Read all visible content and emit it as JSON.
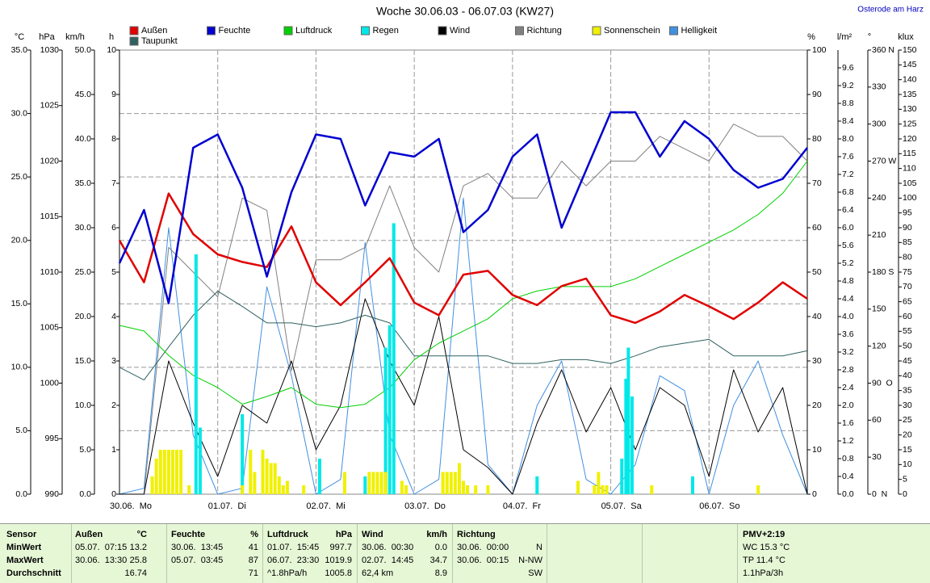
{
  "chart_data": {
    "type": "weather-week",
    "title": "Woche 30.06.03 - 06.07.03 (KW27)",
    "station": "Osterode am Harz",
    "xlim": [
      0,
      168
    ],
    "xticks": [
      {
        "value": 0,
        "label": "30.06.  Mo"
      },
      {
        "value": 24,
        "label": "01.07.  Di"
      },
      {
        "value": 48,
        "label": "02.07.  Mi"
      },
      {
        "value": 72,
        "label": "03.07.  Do"
      },
      {
        "value": 96,
        "label": "04.07.  Fr"
      },
      {
        "value": 120,
        "label": "05.07.  Sa"
      },
      {
        "value": 144,
        "label": "06.07.  So"
      }
    ],
    "grid": true,
    "axes": [
      {
        "unit": "°C",
        "lim": [
          0,
          35
        ],
        "ticks": [
          {
            "value": 0,
            "label": "0.0"
          },
          {
            "value": 5,
            "label": "5.0"
          },
          {
            "value": 10,
            "label": "10.0"
          },
          {
            "value": 15,
            "label": "15.0"
          },
          {
            "value": 20,
            "label": "20.0"
          },
          {
            "value": 25,
            "label": "25.0"
          },
          {
            "value": 30,
            "label": "30.0"
          },
          {
            "value": 35,
            "label": "35.0"
          }
        ]
      },
      {
        "unit": "hPa",
        "lim": [
          990,
          1030
        ],
        "ticks": [
          990,
          995,
          1000,
          1005,
          1010,
          1015,
          1020,
          1025,
          1030
        ]
      },
      {
        "unit": "km/h",
        "lim": [
          0,
          50
        ],
        "ticks": [
          {
            "value": 0,
            "label": "0.0"
          },
          {
            "value": 5,
            "label": "5.0"
          },
          {
            "value": 10,
            "label": "10.0"
          },
          {
            "value": 15,
            "label": "15.0"
          },
          {
            "value": 20,
            "label": "20.0"
          },
          {
            "value": 25,
            "label": "25.0"
          },
          {
            "value": 30,
            "label": "30.0"
          },
          {
            "value": 35,
            "label": "35.0"
          },
          {
            "value": 40,
            "label": "40.0"
          },
          {
            "value": 45,
            "label": "45.0"
          },
          {
            "value": 50,
            "label": "50.0"
          }
        ]
      },
      {
        "unit": "h",
        "lim": [
          0,
          10
        ],
        "ticks": [
          0,
          1,
          2,
          3,
          4,
          5,
          6,
          7,
          8,
          9,
          10
        ]
      },
      {
        "unit": "%",
        "lim": [
          0,
          100
        ],
        "ticks": [
          0,
          10,
          20,
          30,
          40,
          50,
          60,
          70,
          80,
          90,
          100
        ]
      },
      {
        "unit": "l/m²",
        "lim": [
          0,
          10
        ],
        "ticks": [
          {
            "value": 0,
            "label": "0.0"
          },
          {
            "value": 0.4,
            "label": "0.4"
          },
          {
            "value": 0.8,
            "label": "0.8"
          },
          {
            "value": 1.2,
            "label": "1.2"
          },
          {
            "value": 1.6,
            "label": "1.6"
          },
          {
            "value": 2,
            "label": "2.0"
          },
          {
            "value": 2.4,
            "label": "2.4"
          },
          {
            "value": 2.8,
            "label": "2.8"
          },
          {
            "value": 3.2,
            "label": "3.2"
          },
          {
            "value": 3.6,
            "label": "3.6"
          },
          {
            "value": 4,
            "label": "4.0"
          },
          {
            "value": 4.4,
            "label": "4.4"
          },
          {
            "value": 4.8,
            "label": "4.8"
          },
          {
            "value": 5.2,
            "label": "5.2"
          },
          {
            "value": 5.6,
            "label": "5.6"
          },
          {
            "value": 6,
            "label": "6.0"
          },
          {
            "value": 6.4,
            "label": "6.4"
          },
          {
            "value": 6.8,
            "label": "6.8"
          },
          {
            "value": 7.2,
            "label": "7.2"
          },
          {
            "value": 7.6,
            "label": "7.6"
          },
          {
            "value": 8,
            "label": "8.0"
          },
          {
            "value": 8.4,
            "label": "8.4"
          },
          {
            "value": 8.8,
            "label": "8.8"
          },
          {
            "value": 9.2,
            "label": "9.2"
          },
          {
            "value": 9.6,
            "label": "9.6"
          }
        ]
      },
      {
        "unit": "°",
        "lim": [
          0,
          360
        ],
        "ticks": [
          {
            "value": 0,
            "label": "0  N"
          },
          30,
          60,
          {
            "value": 90,
            "label": "90  O"
          },
          120,
          150,
          {
            "value": 180,
            "label": "180 S"
          },
          210,
          240,
          {
            "value": 270,
            "label": "270 W"
          },
          300,
          330,
          {
            "value": 360,
            "label": "360 N"
          }
        ]
      },
      {
        "unit": "klux",
        "lim": [
          0,
          150
        ],
        "ticks": [
          0,
          5,
          10,
          15,
          20,
          25,
          30,
          35,
          40,
          45,
          50,
          55,
          60,
          65,
          70,
          75,
          80,
          85,
          90,
          95,
          100,
          105,
          110,
          115,
          120,
          125,
          130,
          135,
          140,
          145,
          150
        ]
      }
    ],
    "x": [
      0,
      6,
      12,
      18,
      24,
      30,
      36,
      42,
      48,
      54,
      60,
      66,
      72,
      78,
      84,
      90,
      96,
      102,
      108,
      114,
      120,
      126,
      132,
      138,
      144,
      150,
      156,
      162,
      168
    ],
    "series": [
      {
        "name": "Helligkeit",
        "color": "#4090e0",
        "axis": 7,
        "kind": "line",
        "width": 1,
        "values": [
          0,
          2,
          90,
          20,
          0,
          2,
          70,
          40,
          0,
          5,
          85,
          20,
          0,
          5,
          100,
          10,
          0,
          30,
          45,
          5,
          0,
          10,
          40,
          35,
          0,
          30,
          45,
          20,
          0
        ]
      },
      {
        "name": "Richtung",
        "color": "#808080",
        "axis": 6,
        "kind": "line",
        "width": 1,
        "values": [
          0,
          0,
          200,
          180,
          160,
          240,
          230,
          100,
          190,
          190,
          200,
          250,
          200,
          180,
          250,
          260,
          240,
          240,
          270,
          250,
          270,
          270,
          290,
          280,
          270,
          300,
          290,
          290,
          270
        ]
      },
      {
        "name": "Wind",
        "color": "#000000",
        "axis": 2,
        "kind": "line",
        "width": 1,
        "values": [
          0,
          0,
          15,
          8,
          2,
          10,
          8,
          15,
          5,
          10,
          22,
          15,
          10,
          20,
          5,
          3,
          0,
          8,
          14,
          7,
          12,
          5,
          12,
          10,
          2,
          14,
          7,
          12,
          0
        ]
      },
      {
        "name": "Taupunkt",
        "color": "#306060",
        "axis": 0,
        "kind": "line",
        "width": 1,
        "values": [
          10.0,
          9.0,
          11.6,
          14.1,
          16.0,
          14.8,
          13.5,
          13.5,
          13.2,
          13.5,
          14.1,
          13.5,
          10.9,
          10.9,
          10.9,
          10.9,
          10.3,
          10.3,
          10.6,
          10.6,
          10.3,
          10.9,
          11.6,
          11.9,
          12.2,
          10.9,
          10.9,
          10.9,
          11.3
        ]
      },
      {
        "name": "Luftdruck",
        "color": "#00d000",
        "axis": 1,
        "kind": "line",
        "width": 1,
        "values": [
          1005.2,
          1004.7,
          1002.5,
          1000.7,
          999.6,
          998.1,
          998.8,
          999.6,
          998.1,
          997.8,
          998.1,
          999.6,
          1002.1,
          1003.6,
          1004.7,
          1005.8,
          1007.6,
          1008.3,
          1008.7,
          1008.7,
          1008.7,
          1009.4,
          1010.5,
          1011.6,
          1012.7,
          1013.8,
          1015.2,
          1017.1,
          1020.0
        ]
      },
      {
        "name": "Regen",
        "color": "#00e8e8",
        "axis": 5,
        "kind": "bar",
        "x": [
          18.7,
          19.7,
          30,
          48.9,
          60,
          65,
          66,
          67,
          102,
          122.7,
          123.7,
          124.3,
          125.2,
          140
        ],
        "values": [
          5.4,
          1.5,
          1.8,
          0.8,
          0.4,
          3.3,
          3.8,
          6.1,
          0.4,
          0.8,
          2.6,
          3.3,
          2.2,
          0.4
        ]
      },
      {
        "name": "Sonnenschein",
        "color": "#f0f000",
        "axis": 3,
        "kind": "bar",
        "x": [
          8,
          9,
          10,
          11,
          12,
          13,
          14,
          15,
          17,
          30,
          32,
          33,
          35,
          36,
          37,
          38,
          39,
          40,
          41,
          45,
          55,
          61,
          62,
          63,
          64,
          65,
          69,
          70,
          79,
          80,
          81,
          82,
          83,
          84,
          85,
          87,
          90,
          112,
          116,
          117,
          118,
          119,
          130,
          156
        ],
        "values": [
          0.4,
          0.8,
          1,
          1,
          1,
          1,
          1,
          1,
          0.2,
          0.2,
          1,
          0.5,
          1,
          0.8,
          0.7,
          0.7,
          0.4,
          0.2,
          0.3,
          0.2,
          0.5,
          0.5,
          0.5,
          0.5,
          0.5,
          0.5,
          0.3,
          0.2,
          0.5,
          0.5,
          0.5,
          0.5,
          0.7,
          0.3,
          0.2,
          0.2,
          0.2,
          0.3,
          0.2,
          0.5,
          0.2,
          0.2,
          0.2,
          0.2
        ]
      },
      {
        "name": "Außen",
        "color": "#e00000",
        "axis": 0,
        "kind": "line",
        "width": 2.5,
        "values": [
          20.0,
          16.7,
          23.7,
          20.5,
          18.9,
          18.3,
          17.9,
          21.1,
          16.7,
          14.9,
          16.7,
          18.6,
          15.1,
          14.1,
          17.3,
          17.6,
          15.7,
          14.9,
          16.4,
          17.0,
          14.1,
          13.5,
          14.4,
          15.7,
          14.8,
          13.8,
          15.1,
          16.7,
          15.4
        ]
      },
      {
        "name": "Feuchte",
        "color": "#0000d0",
        "axis": 4,
        "kind": "line",
        "width": 2.5,
        "values": [
          52,
          64,
          43,
          78,
          81,
          69,
          49,
          68,
          81,
          80,
          65,
          77,
          76,
          80,
          59,
          64,
          76,
          81,
          60,
          73,
          86,
          86,
          76,
          84,
          80,
          73,
          69,
          71,
          78
        ]
      }
    ],
    "legend_order": [
      7,
      8,
      4,
      5,
      2,
      1,
      6,
      0,
      3
    ]
  },
  "table": {
    "sensor": {
      "title": "Sensor",
      "rows": [
        "MinWert",
        "MaxWert",
        "Durchschnitt"
      ]
    },
    "sections": [
      {
        "title": "Außen",
        "unit": "°C",
        "rows": [
          [
            "05.07.  07:15",
            "13.2"
          ],
          [
            "30.06.  13:30",
            "25.8"
          ],
          [
            null,
            "16.74"
          ]
        ]
      },
      {
        "title": "Feuchte",
        "unit": "%",
        "rows": [
          [
            "30.06.  13:45",
            "41"
          ],
          [
            "05.07.  03:45",
            "87"
          ],
          [
            null,
            "71"
          ]
        ]
      },
      {
        "title": "Luftdruck",
        "unit": "hPa",
        "rows": [
          [
            "01.07.  15:45",
            "997.7"
          ],
          [
            "06.07.  23:30",
            "1019.9"
          ],
          [
            "^1.8hPa/h",
            "1005.8"
          ]
        ]
      },
      {
        "title": "Wind",
        "unit": "km/h",
        "rows": [
          [
            "30.06.  00:30",
            "0.0"
          ],
          [
            "02.07.  14:45",
            "34.7"
          ],
          [
            "62,4 km",
            "8.9"
          ]
        ]
      },
      {
        "title": "Richtung",
        "unit": null,
        "rows": [
          [
            "30.06.  00:00",
            "N"
          ],
          [
            "30.06.  00:15",
            "N-NW"
          ],
          [
            null,
            "SW"
          ]
        ]
      }
    ],
    "pmv": {
      "title": "PMV+2:19",
      "rows": [
        "WC 15.3 °C",
        "TP 11.4 °C",
        "1.1hPa/3h"
      ]
    }
  }
}
